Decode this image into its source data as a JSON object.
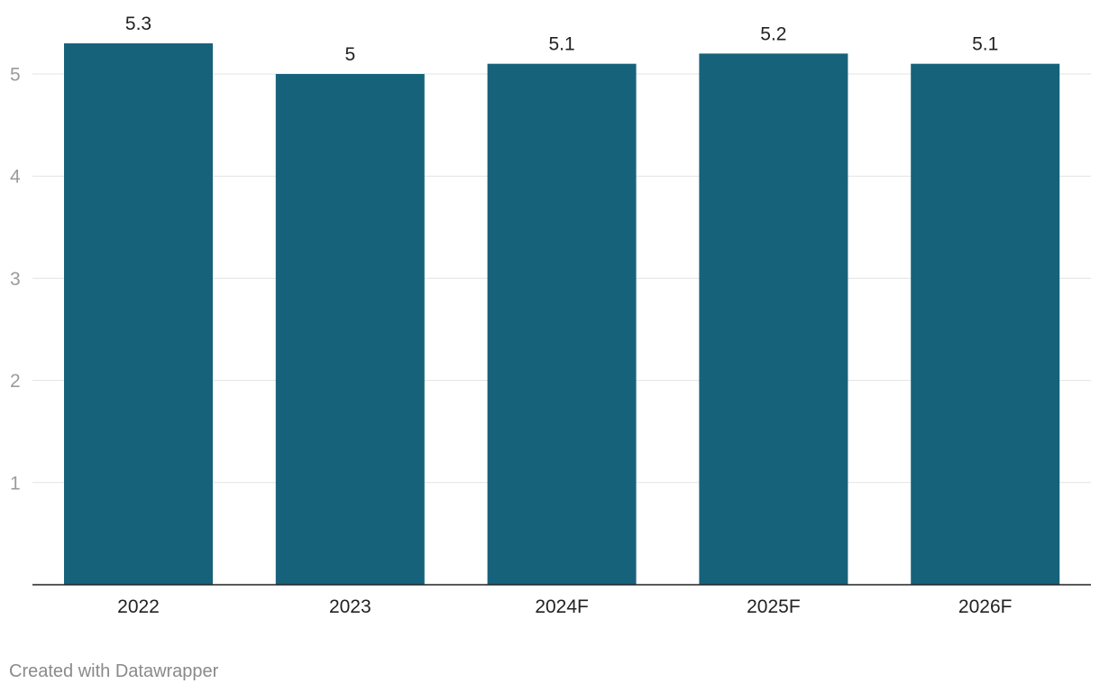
{
  "chart_data": {
    "type": "bar",
    "categories": [
      "2022",
      "2023",
      "2024F",
      "2025F",
      "2026F"
    ],
    "values": [
      5.3,
      5,
      5.1,
      5.2,
      5.1
    ],
    "data_labels": [
      "5.3",
      "5",
      "5.1",
      "5.2",
      "5.1"
    ],
    "title": "",
    "xlabel": "",
    "ylabel": "",
    "ylim": [
      0,
      5.5
    ],
    "yticks": [
      1,
      2,
      3,
      4,
      5
    ],
    "ytick_labels": [
      "1",
      "2",
      "3",
      "4",
      "5"
    ],
    "grid": true,
    "legend": "none",
    "colors": {
      "bar": "#17627b",
      "grid": "#e3e3e3",
      "axis": "#222222",
      "tick_text": "#9b9b9b",
      "label_text": "#222222"
    }
  },
  "footer": {
    "credit": "Created with Datawrapper"
  }
}
